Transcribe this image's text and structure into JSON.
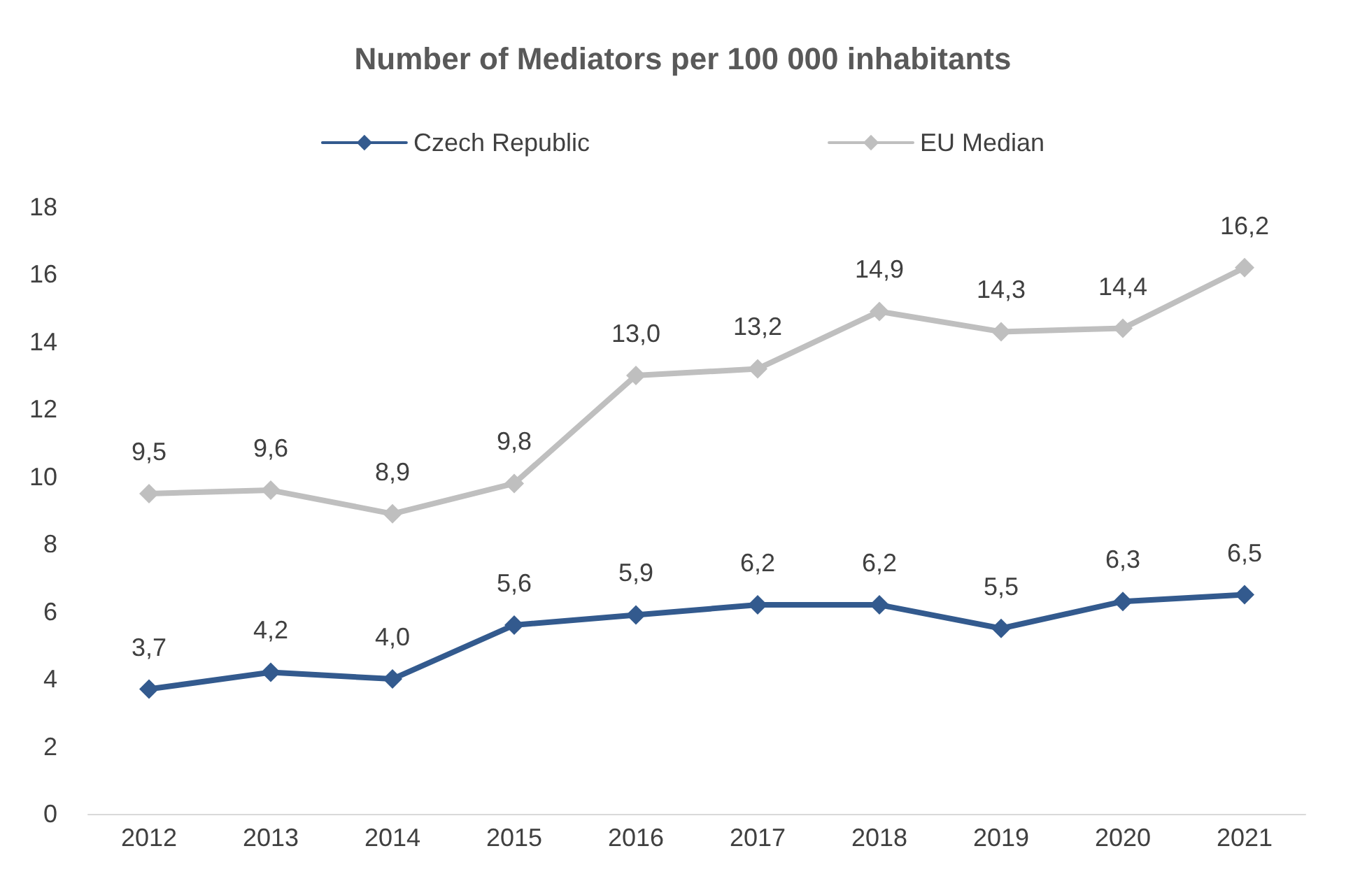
{
  "chart_data": {
    "type": "line",
    "title": "Number of Mediators per 100 000 inhabitants",
    "categories": [
      "2012",
      "2013",
      "2014",
      "2015",
      "2016",
      "2017",
      "2018",
      "2019",
      "2020",
      "2021"
    ],
    "series": [
      {
        "name": "Czech Republic",
        "color": "#335a8e",
        "values": [
          3.7,
          4.2,
          4.0,
          5.6,
          5.9,
          6.2,
          6.2,
          5.5,
          6.3,
          6.5
        ],
        "value_labels": [
          "3,7",
          "4,2",
          "4,0",
          "5,6",
          "5,9",
          "6,2",
          "6,2",
          "5,5",
          "6,3",
          "6,5"
        ]
      },
      {
        "name": "EU Median",
        "color": "#bfbfbf",
        "values": [
          9.5,
          9.6,
          8.9,
          9.8,
          13.0,
          13.2,
          14.9,
          14.3,
          14.4,
          16.2
        ],
        "value_labels": [
          "9,5",
          "9,6",
          "8,9",
          "9,8",
          "13,0",
          "13,2",
          "14,9",
          "14,3",
          "14,4",
          "16,2"
        ]
      }
    ],
    "ylim": [
      0,
      18
    ],
    "yticks": [
      0,
      2,
      4,
      6,
      8,
      10,
      12,
      14,
      16,
      18
    ],
    "grid": false,
    "legend": "top",
    "marker": "diamond",
    "line_style": "solid"
  }
}
